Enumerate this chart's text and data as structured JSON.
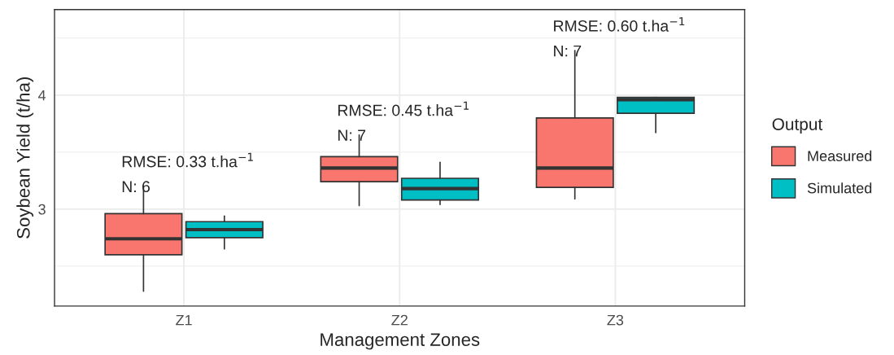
{
  "chart_data": {
    "type": "box",
    "xlabel": "Management Zones",
    "ylabel": "Soybean Yield (t/ha)",
    "legend_title": "Output",
    "legend": "right",
    "grid": true,
    "categories": [
      "Z1",
      "Z2",
      "Z3"
    ],
    "ylim": [
      2.15,
      4.75
    ],
    "yticks": [
      {
        "value": 2.5,
        "label": null
      },
      3,
      {
        "value": 3.5,
        "label": null
      },
      4,
      {
        "value": 4.5,
        "label": null
      }
    ],
    "series": [
      {
        "name": "Measured",
        "color": "#f8766d",
        "boxes": [
          {
            "low": 2.28,
            "q1": 2.6,
            "median": 2.74,
            "q3": 2.96,
            "high": 3.2
          },
          {
            "low": 3.03,
            "q1": 3.24,
            "median": 3.36,
            "q3": 3.46,
            "high": 3.65
          },
          {
            "low": 3.09,
            "q1": 3.19,
            "median": 3.36,
            "q3": 3.8,
            "high": 4.39
          }
        ]
      },
      {
        "name": "Simulated",
        "color": "#00bfc4",
        "boxes": [
          {
            "low": 2.65,
            "q1": 2.75,
            "median": 2.82,
            "q3": 2.89,
            "high": 2.94
          },
          {
            "low": 3.04,
            "q1": 3.08,
            "median": 3.18,
            "q3": 3.27,
            "high": 3.41
          },
          {
            "low": 3.67,
            "q1": 3.84,
            "median": 3.96,
            "q3": 3.98,
            "high": 3.98
          }
        ]
      }
    ],
    "annotations": [
      "RMSE: 0.33 t.ha$^{−1}$",
      "N: 6",
      "RMSE: 0.45 t.ha$^{−1}$",
      "N: 7",
      "RMSE: 0.60 t.ha$^{−1}$",
      "N: 7"
    ]
  }
}
